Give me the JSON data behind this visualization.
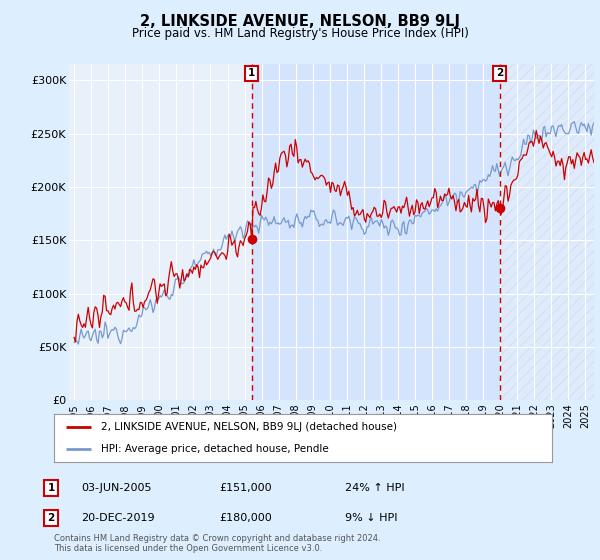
{
  "title": "2, LINKSIDE AVENUE, NELSON, BB9 9LJ",
  "subtitle": "Price paid vs. HM Land Registry's House Price Index (HPI)",
  "ylabel_ticks": [
    "£0",
    "£50K",
    "£100K",
    "£150K",
    "£200K",
    "£250K",
    "£300K"
  ],
  "ytick_vals": [
    0,
    50000,
    100000,
    150000,
    200000,
    250000,
    300000
  ],
  "ylim": [
    0,
    315000
  ],
  "xlim_start": 1994.7,
  "xlim_end": 2025.5,
  "marker1_date": 2005.42,
  "marker1_price": 151000,
  "marker1_label": "1",
  "marker1_text": "03-JUN-2005",
  "marker1_price_text": "£151,000",
  "marker1_hpi_text": "24% ↑ HPI",
  "marker2_date": 2019.96,
  "marker2_price": 180000,
  "marker2_label": "2",
  "marker2_text": "20-DEC-2019",
  "marker2_price_text": "£180,000",
  "marker2_hpi_text": "9% ↓ HPI",
  "legend_line1": "2, LINKSIDE AVENUE, NELSON, BB9 9LJ (detached house)",
  "legend_line2": "HPI: Average price, detached house, Pendle",
  "footer": "Contains HM Land Registry data © Crown copyright and database right 2024.\nThis data is licensed under the Open Government Licence v3.0.",
  "red_color": "#cc0000",
  "blue_color": "#7799cc",
  "shade_color": "#cce0ff",
  "bg_color": "#ddeeff",
  "plot_bg": "#e8f0fa",
  "grid_color": "#ffffff"
}
